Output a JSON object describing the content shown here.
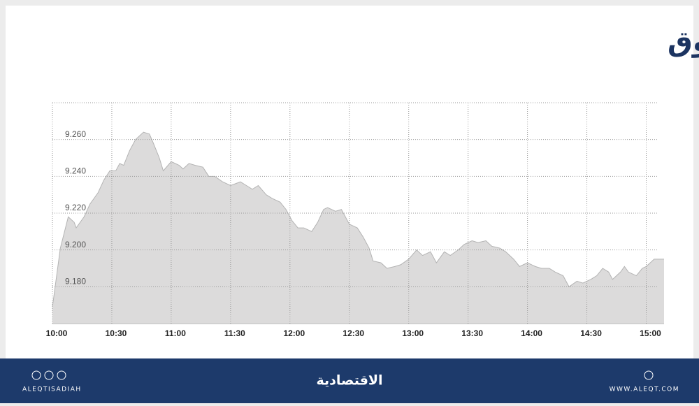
{
  "chart_data": {
    "type": "area",
    "title": "مؤشر السوق",
    "x": [
      600,
      604,
      608,
      611,
      612,
      616,
      619,
      623,
      626,
      629,
      632,
      634,
      636,
      639,
      642,
      646,
      649,
      651,
      654,
      656,
      660,
      664,
      666,
      669,
      672,
      676,
      679,
      682,
      686,
      690,
      695,
      698,
      701,
      704,
      708,
      711,
      715,
      718,
      721,
      724,
      727,
      731,
      734,
      737,
      739,
      743,
      746,
      750,
      754,
      757,
      760,
      762,
      766,
      769,
      773,
      776,
      780,
      784,
      787,
      791,
      794,
      798,
      801,
      805,
      808,
      812,
      815,
      819,
      822,
      826,
      829,
      833,
      836,
      840,
      844,
      847,
      851,
      854,
      858,
      861,
      865,
      868,
      872,
      875,
      878,
      881,
      883,
      887,
      889,
      891,
      895,
      898,
      900,
      904,
      909
    ],
    "values": [
      9.169,
      9.201,
      9.218,
      9.215,
      9.212,
      9.218,
      9.225,
      9.231,
      9.238,
      9.243,
      9.243,
      9.247,
      9.246,
      9.254,
      9.26,
      9.264,
      9.263,
      9.258,
      9.25,
      9.243,
      9.248,
      9.246,
      9.244,
      9.247,
      9.246,
      9.245,
      9.24,
      9.24,
      9.237,
      9.235,
      9.237,
      9.235,
      9.233,
      9.235,
      9.23,
      9.228,
      9.226,
      9.222,
      9.216,
      9.212,
      9.212,
      9.21,
      9.215,
      9.222,
      9.223,
      9.221,
      9.222,
      9.214,
      9.212,
      9.207,
      9.201,
      9.194,
      9.193,
      9.19,
      9.191,
      9.192,
      9.195,
      9.2,
      9.197,
      9.199,
      9.193,
      9.199,
      9.197,
      9.2,
      9.203,
      9.205,
      9.204,
      9.205,
      9.202,
      9.201,
      9.199,
      9.195,
      9.191,
      9.193,
      9.191,
      9.19,
      9.19,
      9.188,
      9.186,
      9.18,
      9.183,
      9.182,
      9.184,
      9.186,
      9.19,
      9.188,
      9.184,
      9.188,
      9.191,
      9.188,
      9.186,
      9.19,
      9.191,
      9.195,
      9.195
    ],
    "color": "#dcdbdb",
    "line_color": "#b3b3b3",
    "xlim": [
      600,
      909
    ],
    "xticks": [
      {
        "value": 600,
        "label": "10:00"
      },
      {
        "value": 630,
        "label": "10:30"
      },
      {
        "value": 660,
        "label": "11:00"
      },
      {
        "value": 690,
        "label": "11:30"
      },
      {
        "value": 720,
        "label": "12:00"
      },
      {
        "value": 750,
        "label": "12:30"
      },
      {
        "value": 780,
        "label": "13:00"
      },
      {
        "value": 810,
        "label": "13:30"
      },
      {
        "value": 840,
        "label": "14:00"
      },
      {
        "value": 870,
        "label": "14:30"
      },
      {
        "value": 900,
        "label": "15:00"
      }
    ],
    "ylim": [
      9.16,
      9.28
    ],
    "yticks": [
      {
        "value": 9.18,
        "label": "9.180"
      },
      {
        "value": 9.2,
        "label": "9.200"
      },
      {
        "value": 9.22,
        "label": "9.220"
      },
      {
        "value": 9.24,
        "label": "9.240"
      },
      {
        "value": 9.26,
        "label": "9.260"
      }
    ],
    "grid": true
  },
  "footer": {
    "left": "ALEQTISADIAH",
    "center": "الاقتصادية",
    "right": "WWW.ALEQT.COM"
  }
}
